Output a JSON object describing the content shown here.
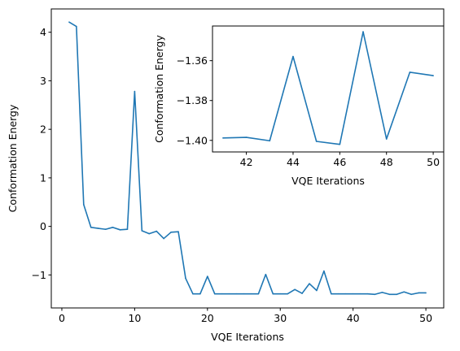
{
  "colors": {
    "series": "#1f77b4",
    "axes": "#000000",
    "background": "#ffffff"
  },
  "chart_data": [
    {
      "id": "main",
      "type": "line",
      "xlabel": "VQE Iterations",
      "ylabel": "Conformation Energy",
      "xlim": [
        -1.45,
        52.45
      ],
      "ylim": [
        -1.68,
        4.48
      ],
      "xticks": [
        0,
        10,
        20,
        30,
        40,
        50
      ],
      "yticks": [
        -1,
        0,
        1,
        2,
        3,
        4
      ],
      "grid": false,
      "x": [
        1,
        2,
        3,
        4,
        5,
        6,
        7,
        8,
        9,
        10,
        11,
        12,
        13,
        14,
        15,
        16,
        17,
        18,
        19,
        20,
        21,
        22,
        23,
        24,
        25,
        26,
        27,
        28,
        29,
        30,
        31,
        32,
        33,
        34,
        35,
        36,
        37,
        38,
        39,
        40,
        41,
        42,
        43,
        44,
        45,
        46,
        47,
        48,
        49,
        50
      ],
      "y": [
        4.21,
        4.12,
        0.45,
        -0.02,
        -0.04,
        -0.06,
        -0.02,
        -0.07,
        -0.06,
        2.78,
        -0.09,
        -0.15,
        -0.1,
        -0.25,
        -0.12,
        -0.11,
        -1.07,
        -1.39,
        -1.39,
        -1.03,
        -1.39,
        -1.39,
        -1.39,
        -1.39,
        -1.39,
        -1.39,
        -1.39,
        -0.99,
        -1.39,
        -1.39,
        -1.39,
        -1.3,
        -1.38,
        -1.18,
        -1.32,
        -0.92,
        -1.39,
        -1.39,
        -1.39,
        -1.39,
        -1.39,
        -1.39,
        -1.4,
        -1.36,
        -1.4,
        -1.4,
        -1.35,
        -1.4,
        -1.37,
        -1.37
      ]
    },
    {
      "id": "inset",
      "type": "line",
      "xlabel": "VQE Iterations",
      "ylabel": "Conformation Energy",
      "xlim": [
        40.55,
        50.45
      ],
      "ylim": [
        -1.4058,
        -1.3426
      ],
      "xticks": [
        42,
        44,
        46,
        48,
        50
      ],
      "yticks": [
        -1.4,
        -1.38,
        -1.36
      ],
      "ytick_labels": [
        "−1.40",
        "−1.38",
        "−1.36"
      ],
      "grid": false,
      "x": [
        41,
        42,
        43,
        44,
        45,
        46,
        47,
        48,
        49,
        50
      ],
      "y": [
        -1.3988,
        -1.3985,
        -1.4002,
        -1.3579,
        -1.4005,
        -1.402,
        -1.3455,
        -1.3993,
        -1.3658,
        -1.3675
      ]
    }
  ]
}
